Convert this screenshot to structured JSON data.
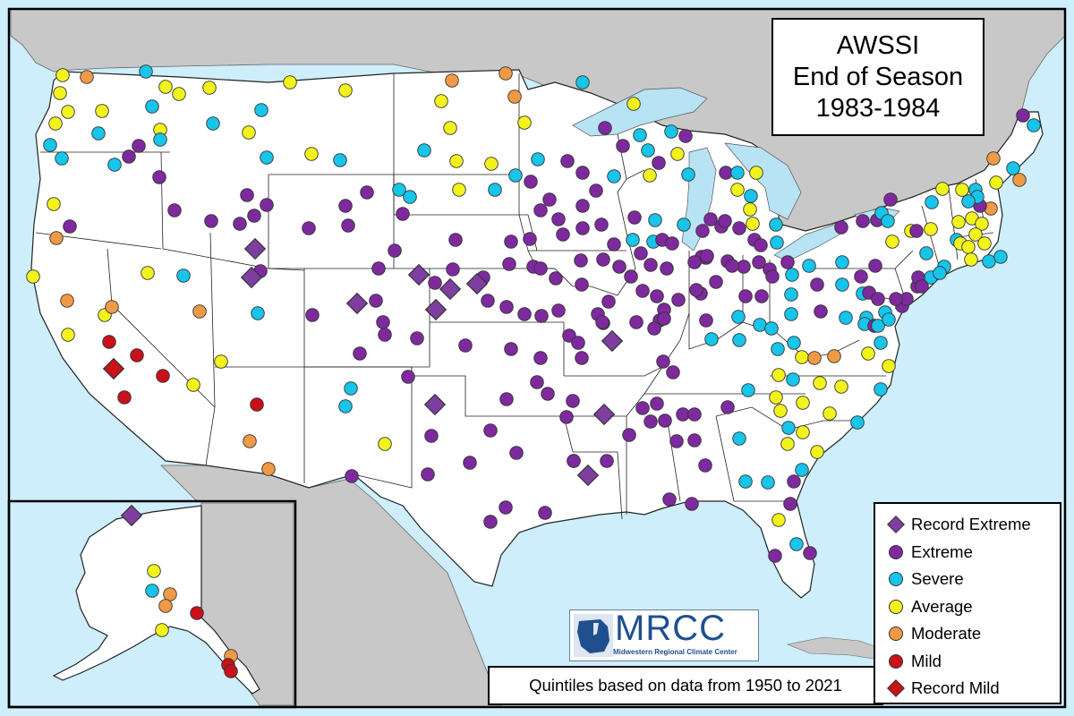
{
  "map": {
    "title_lines": [
      "AWSSI",
      "End of Season",
      "1983-1984"
    ],
    "footnote": "Quintiles based on data from 1950 to 2021",
    "logo": {
      "name": "MRCC",
      "subtitle": "Midwestern Regional Climate Center"
    },
    "colors": {
      "ocean": "#cdeefa",
      "land_neighbor": "#c8c8c8",
      "land_us": "#ffffff",
      "lakes": "#b7e3f4",
      "record_extreme": "#7e3fa0",
      "extreme": "#7e2a9e",
      "severe": "#17c4ea",
      "average": "#f2f21c",
      "moderate": "#f09a45",
      "mild": "#c8111a",
      "record_mild": "#c8111a"
    },
    "legend": [
      {
        "key": "record_extreme",
        "label": "Record Extreme",
        "shape": "diamond"
      },
      {
        "key": "extreme",
        "label": "Extreme",
        "shape": "circle"
      },
      {
        "key": "severe",
        "label": "Severe",
        "shape": "circle"
      },
      {
        "key": "average",
        "label": "Average",
        "shape": "circle"
      },
      {
        "key": "moderate",
        "label": "Moderate",
        "shape": "circle"
      },
      {
        "key": "mild",
        "label": "Mild",
        "shape": "circle"
      },
      {
        "key": "record_mild",
        "label": "Record Mild",
        "shape": "diamond"
      }
    ]
  }
}
